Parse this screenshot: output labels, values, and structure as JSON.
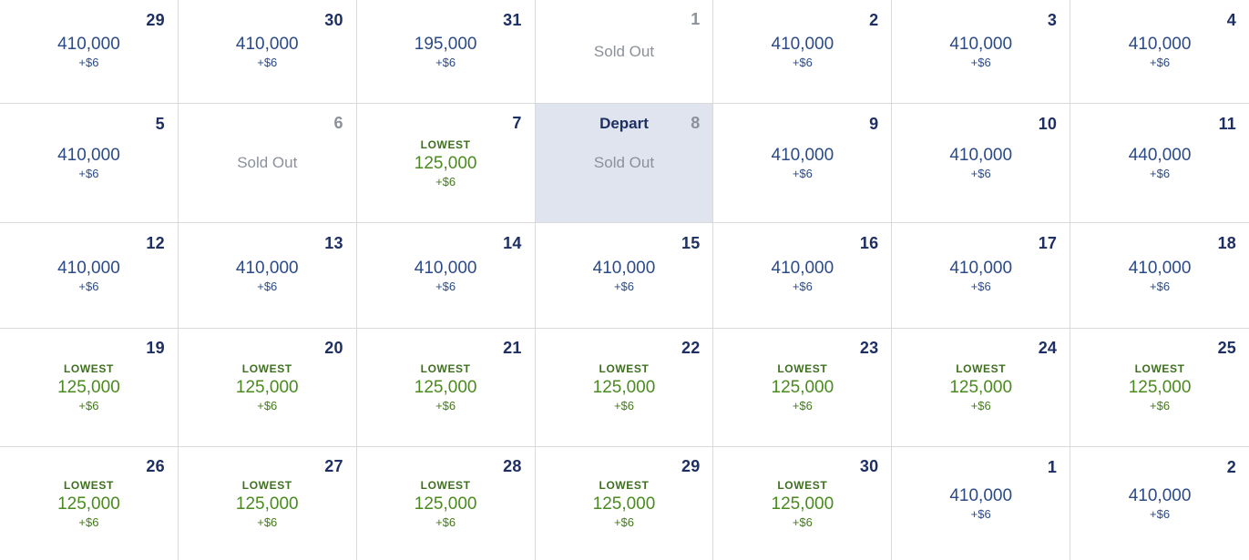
{
  "colors": {
    "day_number": "#1d2f63",
    "price_text": "#2b4a88",
    "sold_out_text": "#8b909a",
    "lowest_green": "#4a8a1f",
    "lowest_label_green": "#3e701e",
    "lowest_fee_green": "#447a1e",
    "depart_cell_bg": "#e0e4ee",
    "grid_border": "#d9d9db"
  },
  "calendar": {
    "rows": [
      {
        "cells": [
          {
            "day": "29",
            "status": "price",
            "price": "410,000",
            "fee": "+$6"
          },
          {
            "day": "30",
            "status": "price",
            "price": "410,000",
            "fee": "+$6"
          },
          {
            "day": "31",
            "status": "price",
            "price": "195,000",
            "fee": "+$6"
          },
          {
            "day": "1",
            "status": "soldout",
            "label": "Sold Out"
          },
          {
            "day": "2",
            "status": "price",
            "price": "410,000",
            "fee": "+$6"
          },
          {
            "day": "3",
            "status": "price",
            "price": "410,000",
            "fee": "+$6"
          },
          {
            "day": "4",
            "status": "price",
            "price": "410,000",
            "fee": "+$6"
          }
        ]
      },
      {
        "cells": [
          {
            "day": "5",
            "status": "price",
            "price": "410,000",
            "fee": "+$6"
          },
          {
            "day": "6",
            "status": "soldout",
            "label": "Sold Out"
          },
          {
            "day": "7",
            "status": "lowest",
            "lowest_label": "LOWEST",
            "price": "125,000",
            "fee": "+$6"
          },
          {
            "day": "8",
            "status": "depart",
            "depart_label": "Depart",
            "label": "Sold Out"
          },
          {
            "day": "9",
            "status": "price",
            "price": "410,000",
            "fee": "+$6"
          },
          {
            "day": "10",
            "status": "price",
            "price": "410,000",
            "fee": "+$6"
          },
          {
            "day": "11",
            "status": "price",
            "price": "440,000",
            "fee": "+$6"
          }
        ]
      },
      {
        "cells": [
          {
            "day": "12",
            "status": "price",
            "price": "410,000",
            "fee": "+$6"
          },
          {
            "day": "13",
            "status": "price",
            "price": "410,000",
            "fee": "+$6"
          },
          {
            "day": "14",
            "status": "price",
            "price": "410,000",
            "fee": "+$6"
          },
          {
            "day": "15",
            "status": "price",
            "price": "410,000",
            "fee": "+$6"
          },
          {
            "day": "16",
            "status": "price",
            "price": "410,000",
            "fee": "+$6"
          },
          {
            "day": "17",
            "status": "price",
            "price": "410,000",
            "fee": "+$6"
          },
          {
            "day": "18",
            "status": "price",
            "price": "410,000",
            "fee": "+$6"
          }
        ]
      },
      {
        "cells": [
          {
            "day": "19",
            "status": "lowest",
            "lowest_label": "LOWEST",
            "price": "125,000",
            "fee": "+$6"
          },
          {
            "day": "20",
            "status": "lowest",
            "lowest_label": "LOWEST",
            "price": "125,000",
            "fee": "+$6"
          },
          {
            "day": "21",
            "status": "lowest",
            "lowest_label": "LOWEST",
            "price": "125,000",
            "fee": "+$6"
          },
          {
            "day": "22",
            "status": "lowest",
            "lowest_label": "LOWEST",
            "price": "125,000",
            "fee": "+$6"
          },
          {
            "day": "23",
            "status": "lowest",
            "lowest_label": "LOWEST",
            "price": "125,000",
            "fee": "+$6"
          },
          {
            "day": "24",
            "status": "lowest",
            "lowest_label": "LOWEST",
            "price": "125,000",
            "fee": "+$6"
          },
          {
            "day": "25",
            "status": "lowest",
            "lowest_label": "LOWEST",
            "price": "125,000",
            "fee": "+$6"
          }
        ]
      },
      {
        "cells": [
          {
            "day": "26",
            "status": "lowest",
            "lowest_label": "LOWEST",
            "price": "125,000",
            "fee": "+$6"
          },
          {
            "day": "27",
            "status": "lowest",
            "lowest_label": "LOWEST",
            "price": "125,000",
            "fee": "+$6"
          },
          {
            "day": "28",
            "status": "lowest",
            "lowest_label": "LOWEST",
            "price": "125,000",
            "fee": "+$6"
          },
          {
            "day": "29",
            "status": "lowest",
            "lowest_label": "LOWEST",
            "price": "125,000",
            "fee": "+$6"
          },
          {
            "day": "30",
            "status": "lowest",
            "lowest_label": "LOWEST",
            "price": "125,000",
            "fee": "+$6"
          },
          {
            "day": "1",
            "status": "price",
            "price": "410,000",
            "fee": "+$6"
          },
          {
            "day": "2",
            "status": "price",
            "price": "410,000",
            "fee": "+$6"
          }
        ]
      }
    ]
  }
}
